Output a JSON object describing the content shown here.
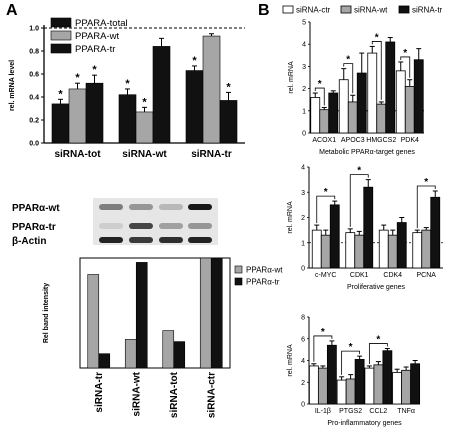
{
  "panel_letters": {
    "a": "A",
    "b": "B"
  },
  "colors": {
    "black": "#111111",
    "grey": "#a6a6a6",
    "white": "#ffffff",
    "blot_bg": "#e6e6e6"
  },
  "blot": {
    "labels": [
      "PPARα-wt",
      "PPARα-tr",
      "β-Actin"
    ],
    "bands": [
      [
        0.45,
        0.35,
        0.2,
        0.9
      ],
      [
        0.1,
        0.7,
        0.3,
        0.35
      ],
      [
        0.85,
        0.75,
        0.8,
        0.85
      ]
    ]
  },
  "chart_data": [
    {
      "id": "A-top",
      "type": "bar",
      "ylabel": "rel. mRNA level",
      "ylim": [
        0.0,
        1.0
      ],
      "yticks": [
        0.0,
        0.2,
        0.4,
        0.6,
        0.8,
        1.0
      ],
      "ytick_labels": [
        "0.0",
        "0.2",
        "0.4",
        "0.6",
        "0.8",
        "1.0"
      ],
      "reference_line": 1.0,
      "categories": [
        "siRNA-tot",
        "siRNA-wt",
        "siRNA-tr"
      ],
      "legend": "top-left",
      "series": [
        {
          "name": "PPARA-total",
          "color": "black",
          "values": [
            0.34,
            0.42,
            0.63
          ],
          "errors": [
            0.04,
            0.05,
            0.04
          ],
          "stars": [
            true,
            true,
            true
          ]
        },
        {
          "name": "PPARA-wt",
          "color": "grey",
          "values": [
            0.47,
            0.27,
            0.93
          ],
          "errors": [
            0.05,
            0.04,
            0.02
          ],
          "stars": [
            true,
            true,
            false
          ]
        },
        {
          "name": "PPARA-tr",
          "color": "black",
          "values": [
            0.52,
            0.84,
            0.37
          ],
          "errors": [
            0.07,
            0.07,
            0.07
          ],
          "stars": [
            true,
            false,
            true
          ]
        }
      ]
    },
    {
      "id": "A-bottom",
      "type": "bar",
      "ylabel": "Rel band intensity",
      "ylim": [
        0,
        1
      ],
      "categories": [
        "siRNA-tr",
        "siRNA-wt",
        "siRNA-tot",
        "siRNA-ctr"
      ],
      "legend": "top-right",
      "series": [
        {
          "name": "PPARα-wt",
          "color": "grey",
          "values": [
            0.85,
            0.26,
            0.34,
            1.0
          ]
        },
        {
          "name": "PPARα-tr",
          "color": "black",
          "values": [
            0.13,
            0.96,
            0.24,
            1.0
          ]
        }
      ]
    },
    {
      "id": "B-1",
      "type": "bar",
      "title": "Metabolic PPARα-target genes",
      "ylabel": "rel. mRNA",
      "ylim": [
        0,
        5
      ],
      "yticks": [
        0,
        1,
        2,
        3,
        4,
        5
      ],
      "ytick_labels": [
        "0",
        "1",
        "2",
        "3",
        "4",
        "5"
      ],
      "reference_line": 1.0,
      "categories": [
        "ACOX1",
        "APOC3",
        "HMGCS2",
        "PDK4"
      ],
      "legend": "top",
      "series": [
        {
          "name": "siRNA-ctr",
          "color": "white",
          "values": [
            1.6,
            2.4,
            3.6,
            2.8
          ],
          "errors": [
            0.2,
            0.5,
            0.3,
            0.4
          ]
        },
        {
          "name": "siRNA-wt",
          "color": "grey",
          "values": [
            1.05,
            1.4,
            1.3,
            2.1
          ],
          "errors": [
            0.1,
            0.3,
            0.1,
            0.3
          ]
        },
        {
          "name": "siRNA-tr",
          "color": "black",
          "values": [
            1.8,
            2.7,
            4.1,
            3.3
          ],
          "errors": [
            0.1,
            0.9,
            0.2,
            0.5
          ]
        }
      ],
      "significance": [
        [
          0,
          0,
          1
        ],
        [
          1,
          0,
          1
        ],
        [
          2,
          0,
          1
        ],
        [
          3,
          0,
          1
        ]
      ]
    },
    {
      "id": "B-2",
      "type": "bar",
      "title": "Proliferative genes",
      "ylabel": "rel. mRNA",
      "ylim": [
        0,
        4
      ],
      "yticks": [
        0,
        1,
        2,
        3,
        4
      ],
      "ytick_labels": [
        "0",
        "1",
        "2",
        "3",
        "4"
      ],
      "reference_line": 1.0,
      "categories": [
        "c-MYC",
        "CDK1",
        "CDK4",
        "PCNA"
      ],
      "series": [
        {
          "name": "siRNA-ctr",
          "color": "white",
          "values": [
            1.5,
            1.4,
            1.5,
            1.4
          ],
          "errors": [
            0.2,
            0.15,
            0.2,
            0.1
          ]
        },
        {
          "name": "siRNA-wt",
          "color": "grey",
          "values": [
            1.3,
            1.3,
            1.3,
            1.5
          ],
          "errors": [
            0.2,
            0.15,
            0.2,
            0.1
          ]
        },
        {
          "name": "siRNA-tr",
          "color": "black",
          "values": [
            2.5,
            3.2,
            1.8,
            2.8
          ],
          "errors": [
            0.15,
            0.3,
            0.2,
            0.25
          ]
        }
      ],
      "significance": [
        [
          0,
          0,
          2
        ],
        [
          1,
          0,
          2
        ],
        [
          3,
          0,
          2
        ]
      ]
    },
    {
      "id": "B-3",
      "type": "bar",
      "title": "Pro-inflammatory genes",
      "ylabel": "rel. mRNA",
      "ylim": [
        0,
        8
      ],
      "yticks": [
        0,
        2,
        4,
        6,
        8
      ],
      "ytick_labels": [
        "0",
        "2",
        "4",
        "6",
        "8"
      ],
      "reference_line": 1.0,
      "categories": [
        "IL-1β",
        "PTGS2",
        "CCL2",
        "TNFα"
      ],
      "series": [
        {
          "name": "siRNA-ctr",
          "color": "white",
          "values": [
            3.5,
            2.2,
            3.3,
            2.9
          ],
          "errors": [
            0.2,
            0.3,
            0.2,
            0.3
          ]
        },
        {
          "name": "siRNA-wt",
          "color": "grey",
          "values": [
            3.3,
            2.3,
            3.6,
            3.1
          ],
          "errors": [
            0.2,
            0.4,
            0.3,
            0.3
          ]
        },
        {
          "name": "siRNA-tr",
          "color": "black",
          "values": [
            5.4,
            4.1,
            4.9,
            3.7
          ],
          "errors": [
            0.4,
            0.3,
            0.2,
            0.3
          ]
        }
      ],
      "significance": [
        [
          0,
          0,
          2
        ],
        [
          1,
          0,
          2
        ],
        [
          2,
          0,
          2
        ]
      ]
    }
  ]
}
